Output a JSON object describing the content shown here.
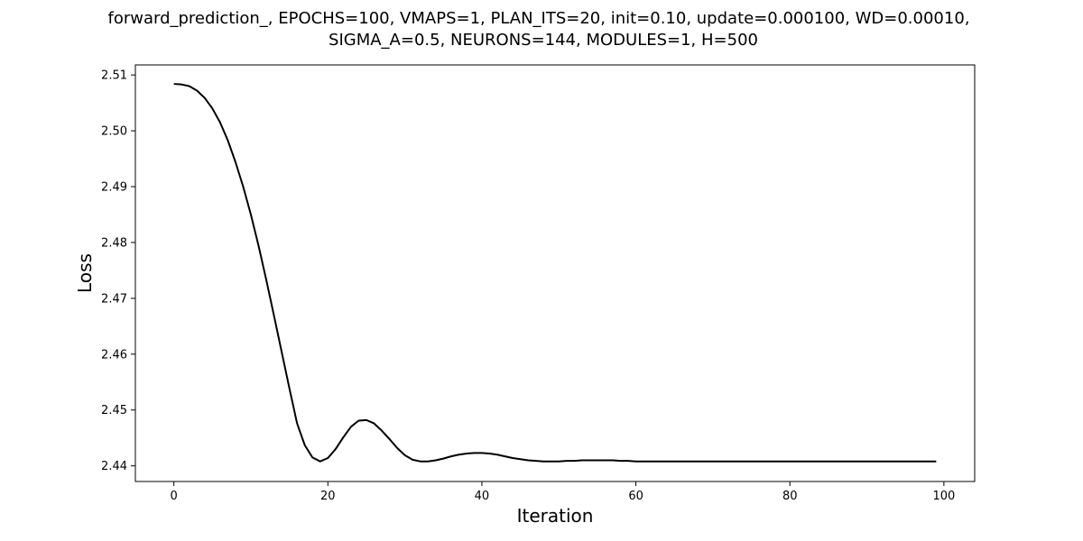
{
  "chart_data": {
    "type": "line",
    "title_lines": [
      "forward_prediction_, EPOCHS=100, VMAPS=1, PLAN_ITS=20, init=0.10, update=0.000100, WD=0.00010,",
      "SIGMA_A=0.5, NEURONS=144, MODULES=1, H=500"
    ],
    "xlabel": "Iteration",
    "ylabel": "Loss",
    "xlim": [
      -5,
      104
    ],
    "ylim": [
      2.4372,
      2.5118
    ],
    "xticks": [
      0,
      20,
      40,
      60,
      80,
      100
    ],
    "xtick_labels": [
      "0",
      "20",
      "40",
      "60",
      "80",
      "100"
    ],
    "yticks": [
      2.44,
      2.45,
      2.46,
      2.47,
      2.48,
      2.49,
      2.5,
      2.51
    ],
    "ytick_labels": [
      "2.44",
      "2.45",
      "2.46",
      "2.47",
      "2.48",
      "2.49",
      "2.50",
      "2.51"
    ],
    "grid": false,
    "series": [
      {
        "color": "#000000",
        "x": [
          0,
          1,
          2,
          3,
          4,
          5,
          6,
          7,
          8,
          9,
          10,
          11,
          12,
          13,
          14,
          15,
          16,
          17,
          18,
          19,
          20,
          21,
          22,
          23,
          24,
          25,
          26,
          27,
          28,
          29,
          30,
          31,
          32,
          33,
          34,
          35,
          36,
          37,
          38,
          39,
          40,
          41,
          42,
          43,
          44,
          45,
          46,
          47,
          48,
          49,
          50,
          51,
          52,
          53,
          54,
          55,
          56,
          57,
          58,
          59,
          60,
          61,
          62,
          63,
          64,
          65,
          66,
          67,
          68,
          69,
          70,
          71,
          72,
          73,
          74,
          75,
          76,
          77,
          78,
          79,
          80,
          81,
          82,
          83,
          84,
          85,
          86,
          87,
          88,
          89,
          90,
          91,
          92,
          93,
          94,
          95,
          96,
          97,
          98,
          99
        ],
        "y": [
          2.5084,
          2.5083,
          2.508,
          2.5072,
          2.5059,
          2.504,
          2.5015,
          2.4983,
          2.4944,
          2.49,
          2.485,
          2.4794,
          2.4733,
          2.4669,
          2.4604,
          2.4539,
          2.4476,
          2.4437,
          2.4415,
          2.4408,
          2.4414,
          2.443,
          2.4451,
          2.447,
          2.4481,
          2.4482,
          2.4476,
          2.4463,
          2.4448,
          2.4432,
          2.4419,
          2.4411,
          2.4408,
          2.4408,
          2.441,
          2.4413,
          2.4417,
          2.442,
          2.4422,
          2.4423,
          2.4423,
          2.4422,
          2.442,
          2.4417,
          2.4414,
          2.4412,
          2.441,
          2.4409,
          2.4408,
          2.4408,
          2.4408,
          2.4409,
          2.4409,
          2.441,
          2.441,
          2.441,
          2.441,
          2.441,
          2.4409,
          2.4409,
          2.4408,
          2.4408,
          2.4408,
          2.4408,
          2.4408,
          2.4408,
          2.4408,
          2.4408,
          2.4408,
          2.4408,
          2.4408,
          2.4408,
          2.4408,
          2.4408,
          2.4408,
          2.4408,
          2.4408,
          2.4408,
          2.4408,
          2.4408,
          2.4408,
          2.4408,
          2.4408,
          2.4408,
          2.4408,
          2.4408,
          2.4408,
          2.4408,
          2.4408,
          2.4408,
          2.4408,
          2.4408,
          2.4408,
          2.4408,
          2.4408,
          2.4408,
          2.4408,
          2.4408,
          2.4408,
          2.4408
        ]
      }
    ]
  }
}
